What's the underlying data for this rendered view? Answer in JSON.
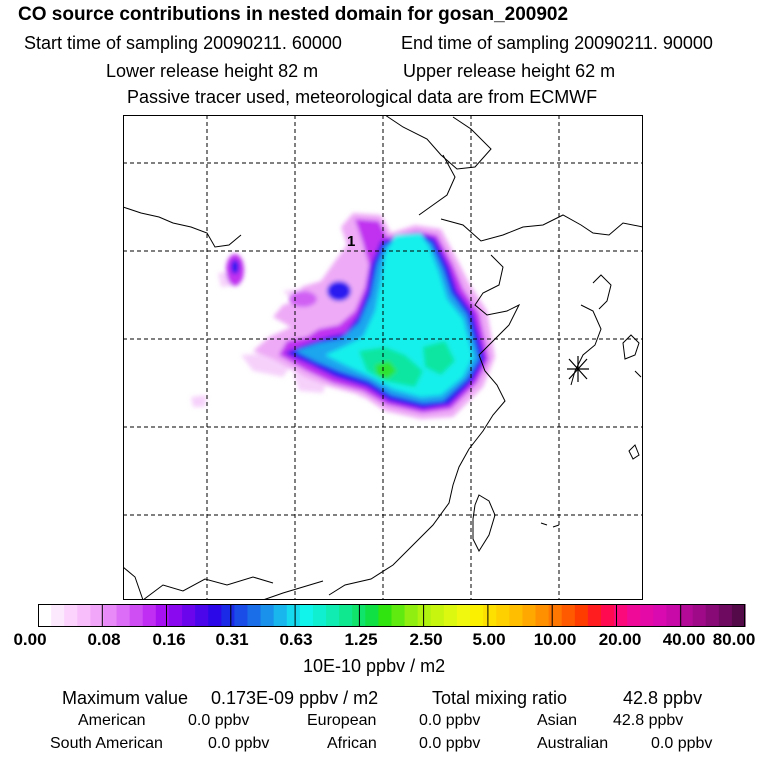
{
  "header": {
    "title": "CO  source contributions in nested domain for gosan_200902",
    "start_label": "Start time of sampling 20090211. 60000",
    "end_label": "End time of sampling 20090211. 90000",
    "lower_label": "Lower release height   82 m",
    "upper_label": "Upper release height   62 m",
    "note": "Passive tracer used, meteorological data are from ECMWF"
  },
  "map": {
    "marker_label": "1",
    "receptor_symbol": "asterisk"
  },
  "colorbar": {
    "tick_labels": [
      "0.00",
      "0.08",
      "0.16",
      "0.31",
      "0.63",
      "1.25",
      "2.50",
      "5.00",
      "10.00",
      "20.00",
      "40.00",
      "80.00"
    ],
    "units": "10E-10 ppbv / m2",
    "colors": [
      "#ffffff",
      "#fde9fe",
      "#fbd3fd",
      "#f8bdfb",
      "#f2a6f9",
      "#e88af7",
      "#dc6df6",
      "#cf4ef4",
      "#bf2ef2",
      "#a511f0",
      "#8a09ee",
      "#6b06ec",
      "#4b06ea",
      "#2c08e8",
      "#1a2ae6",
      "#1a4ce8",
      "#1a6fe9",
      "#1a92eb",
      "#19b5ed",
      "#16d9ef",
      "#11f4ec",
      "#10f0d0",
      "#10ecb2",
      "#10e890",
      "#10e46a",
      "#10e044",
      "#30e410",
      "#60ea10",
      "#90ef10",
      "#b0f210",
      "#c8f510",
      "#ddf810",
      "#f0f810",
      "#fbf000",
      "#fde000",
      "#ffd000",
      "#ffbe00",
      "#ffa800",
      "#ff9000",
      "#ff7600",
      "#ff5a00",
      "#ff3c00",
      "#ff1d20",
      "#ff0a50",
      "#fa0a7a",
      "#f00a98",
      "#e40aa8",
      "#d80ab0",
      "#c80aa8",
      "#b40a98",
      "#9e0a88",
      "#880a76",
      "#6e0a60",
      "#540a48"
    ]
  },
  "footer": {
    "max_label": "Maximum value",
    "max_value": "0.173E-09 ppbv / m2",
    "total_label": "Total mixing ratio",
    "total_value": "42.8 ppbv",
    "regions": [
      {
        "name": "American",
        "value": "0.0 ppbv"
      },
      {
        "name": "European",
        "value": "0.0 ppbv"
      },
      {
        "name": "Asian",
        "value": "42.8 ppbv"
      },
      {
        "name": "South American",
        "value": "0.0 ppbv"
      },
      {
        "name": "African",
        "value": "0.0 ppbv"
      },
      {
        "name": "Australian",
        "value": "0.0 ppbv"
      }
    ]
  }
}
